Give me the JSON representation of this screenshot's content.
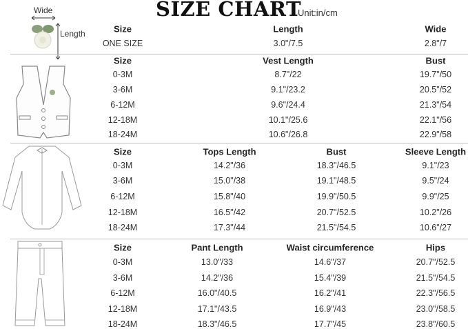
{
  "title": "SIZE CHART",
  "unit": "Unit:in/cm",
  "corsage_labels": {
    "wide": "Wide",
    "length": "Length"
  },
  "sections": [
    {
      "name": "corsage",
      "icon": "corsage-icon",
      "headers": [
        "Size",
        "Length",
        "Wide"
      ],
      "rows": [
        [
          "ONE SIZE",
          "3.0\"/7.5",
          "2.8\"/7"
        ]
      ]
    },
    {
      "name": "vest",
      "icon": "vest-icon",
      "headers": [
        "Size",
        "Vest Length",
        "Bust"
      ],
      "rows": [
        [
          "0-3M",
          "8.7\"/22",
          "19.7\"/50"
        ],
        [
          "3-6M",
          "9.1\"/23.2",
          "20.5\"/52"
        ],
        [
          "6-12M",
          "9.6\"/24.4",
          "21.3\"/54"
        ],
        [
          "12-18M",
          "10.1\"/25.6",
          "22.1\"/56"
        ],
        [
          "18-24M",
          "10.6\"/26.8",
          "22.9\"/58"
        ]
      ]
    },
    {
      "name": "bodysuit",
      "icon": "bodysuit-icon",
      "headers": [
        "Size",
        "Tops Length",
        "Bust",
        "Sleeve Length"
      ],
      "rows": [
        [
          "0-3M",
          "14.2\"/36",
          "18.3\"/46.5",
          "9.1\"/23"
        ],
        [
          "3-6M",
          "15.0\"/38",
          "19.1\"/48.5",
          "9.5\"/24"
        ],
        [
          "6-12M",
          "15.8\"/40",
          "19.9\"/50.5",
          "9.9\"/25"
        ],
        [
          "12-18M",
          "16.5\"/42",
          "20.7\"/52.5",
          "10.2\"/26"
        ],
        [
          "18-24M",
          "17.3\"/44",
          "21.5\"/54.5",
          "10.6\"/27"
        ]
      ]
    },
    {
      "name": "pants",
      "icon": "pants-icon",
      "headers": [
        "Size",
        "Pant Length",
        "Waist circumference",
        "Hips"
      ],
      "rows": [
        [
          "0-3M",
          "13.0\"/33",
          "14.6\"/37",
          "20.7\"/52.5"
        ],
        [
          "3-6M",
          "14.2\"/36",
          "15.4\"/39",
          "21.5\"/54.5"
        ],
        [
          "6-12M",
          "16.0\"/40.5",
          "16.2\"/41",
          "22.3\"/56.5"
        ],
        [
          "12-18M",
          "17.1\"/43.5",
          "16.9\"/43",
          "23.0\"/58.5"
        ],
        [
          "18-24M",
          "18.3\"/46.5",
          "17.7\"/45",
          "23.8\"/60.5"
        ]
      ]
    }
  ]
}
